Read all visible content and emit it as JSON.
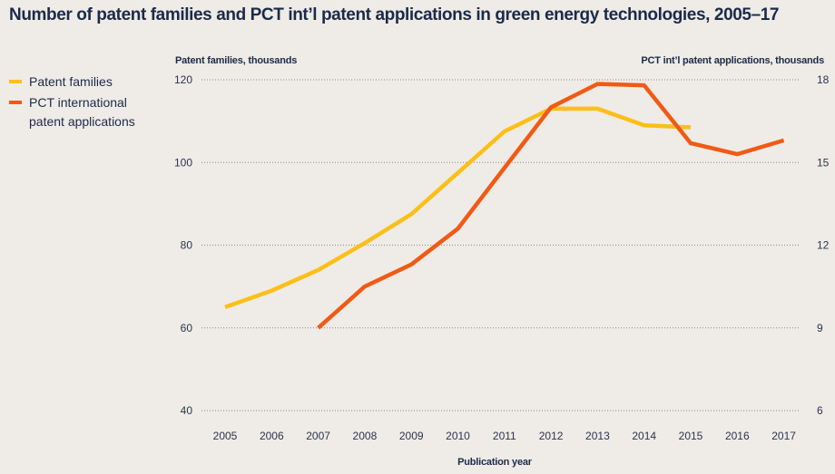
{
  "chart_data": {
    "type": "line",
    "title": "Number of patent families and PCT int’l patent applications in green energy technologies, 2005–17",
    "xlabel": "Publication year",
    "ylabel_left": "Patent families, thousands",
    "ylabel_right": "PCT int’l patent applications, thousands",
    "categories": [
      "2005",
      "2006",
      "2007",
      "2008",
      "2009",
      "2010",
      "2011",
      "2012",
      "2013",
      "2014",
      "2015",
      "2016",
      "2017"
    ],
    "ylim_left": [
      40,
      120
    ],
    "yticks_left": [
      40,
      60,
      80,
      100,
      120
    ],
    "ylim_right": [
      6,
      18
    ],
    "yticks_right": [
      6,
      9,
      12,
      15,
      18
    ],
    "grid": true,
    "legend_position": "top-left",
    "series": [
      {
        "name": "Patent families",
        "axis": "left",
        "color": "#fbbf17",
        "values": [
          65,
          69,
          74,
          80.5,
          87.5,
          97.5,
          107.5,
          113,
          113,
          109,
          108.5,
          null,
          null
        ]
      },
      {
        "name": "PCT international patent applications",
        "axis": "right",
        "color": "#f05a14",
        "values": [
          null,
          null,
          9.0,
          10.5,
          11.3,
          12.6,
          14.8,
          17.0,
          17.85,
          17.8,
          15.7,
          15.3,
          15.8
        ]
      }
    ]
  },
  "legend": {
    "items": [
      {
        "lines": [
          "Patent families"
        ],
        "color": "#fbbf17"
      },
      {
        "lines": [
          "PCT international",
          "patent applications"
        ],
        "color": "#f05a14"
      }
    ]
  }
}
